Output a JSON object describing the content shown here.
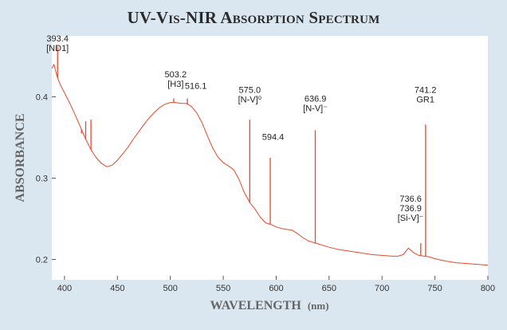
{
  "chart_data": {
    "type": "line",
    "title": "UV-Vis-NIR Absorption Spectrum",
    "xlabel": "WAVELENGTH",
    "xlabel_unit": "(nm)",
    "ylabel": "ABSORBANCE",
    "xlim": [
      388,
      800
    ],
    "ylim": [
      0.175,
      0.475
    ],
    "x_ticks": [
      400,
      450,
      500,
      550,
      600,
      650,
      700,
      750,
      800
    ],
    "y_ticks": [
      0.2,
      0.3,
      0.4
    ],
    "grid": false,
    "legend": "none",
    "line_color": "#e8472c",
    "series": [
      {
        "x": [
          388,
          390,
          393,
          396,
          400,
          405,
          410,
          415,
          420,
          425,
          430,
          435,
          440,
          445,
          450,
          455,
          460,
          465,
          470,
          475,
          480,
          485,
          490,
          495,
          500,
          505,
          510,
          515,
          520,
          525,
          530,
          535,
          540,
          545,
          550,
          555,
          560,
          565,
          570,
          575,
          580,
          585,
          590,
          595,
          600,
          605,
          610,
          615,
          620,
          625,
          630,
          635,
          640,
          645,
          650,
          660,
          670,
          680,
          690,
          700,
          710,
          715,
          720,
          725,
          730,
          735,
          740,
          745,
          750,
          760,
          770,
          780,
          790,
          800
        ],
        "y": [
          0.435,
          0.44,
          0.425,
          0.415,
          0.405,
          0.392,
          0.378,
          0.363,
          0.348,
          0.335,
          0.325,
          0.318,
          0.314,
          0.316,
          0.322,
          0.33,
          0.338,
          0.348,
          0.357,
          0.366,
          0.374,
          0.381,
          0.387,
          0.391,
          0.393,
          0.393,
          0.392,
          0.392,
          0.388,
          0.38,
          0.368,
          0.352,
          0.337,
          0.326,
          0.319,
          0.315,
          0.31,
          0.298,
          0.282,
          0.27,
          0.262,
          0.252,
          0.245,
          0.243,
          0.24,
          0.238,
          0.237,
          0.236,
          0.232,
          0.227,
          0.223,
          0.221,
          0.219,
          0.217,
          0.215,
          0.212,
          0.21,
          0.208,
          0.206,
          0.205,
          0.204,
          0.204,
          0.206,
          0.214,
          0.208,
          0.205,
          0.204,
          0.203,
          0.201,
          0.198,
          0.196,
          0.195,
          0.194,
          0.193
        ]
      }
    ],
    "peaks": [
      {
        "x": 393.4,
        "y": 0.462
      },
      {
        "x": 416,
        "y": 0.355
      },
      {
        "x": 420,
        "y": 0.37
      },
      {
        "x": 425,
        "y": 0.372
      },
      {
        "x": 503.2,
        "y": 0.398
      },
      {
        "x": 516.1,
        "y": 0.398
      },
      {
        "x": 575.0,
        "y": 0.372
      },
      {
        "x": 594.4,
        "y": 0.325
      },
      {
        "x": 636.9,
        "y": 0.359
      },
      {
        "x": 736.6,
        "y": 0.22
      },
      {
        "x": 741.2,
        "y": 0.366
      }
    ],
    "annotations": [
      {
        "lines": [
          "393.4",
          "[ND1]"
        ],
        "x": 393.4,
        "y": 0.468
      },
      {
        "lines": [
          "503.2",
          "[H3]"
        ],
        "x": 505,
        "y": 0.424
      },
      {
        "lines": [
          "516.1"
        ],
        "x": 524,
        "y": 0.41
      },
      {
        "lines": [
          "575.0",
          "[N-V]⁰"
        ],
        "x": 575,
        "y": 0.405
      },
      {
        "lines": [
          "594.4"
        ],
        "x": 597,
        "y": 0.347
      },
      {
        "lines": [
          "636.9",
          "[N-V]⁻"
        ],
        "x": 637,
        "y": 0.394
      },
      {
        "lines": [
          "741.2",
          "GR1"
        ],
        "x": 741,
        "y": 0.405
      },
      {
        "lines": [
          "736.6",
          "736.9",
          "[Si-V]⁻"
        ],
        "x": 727,
        "y": 0.271
      }
    ]
  }
}
